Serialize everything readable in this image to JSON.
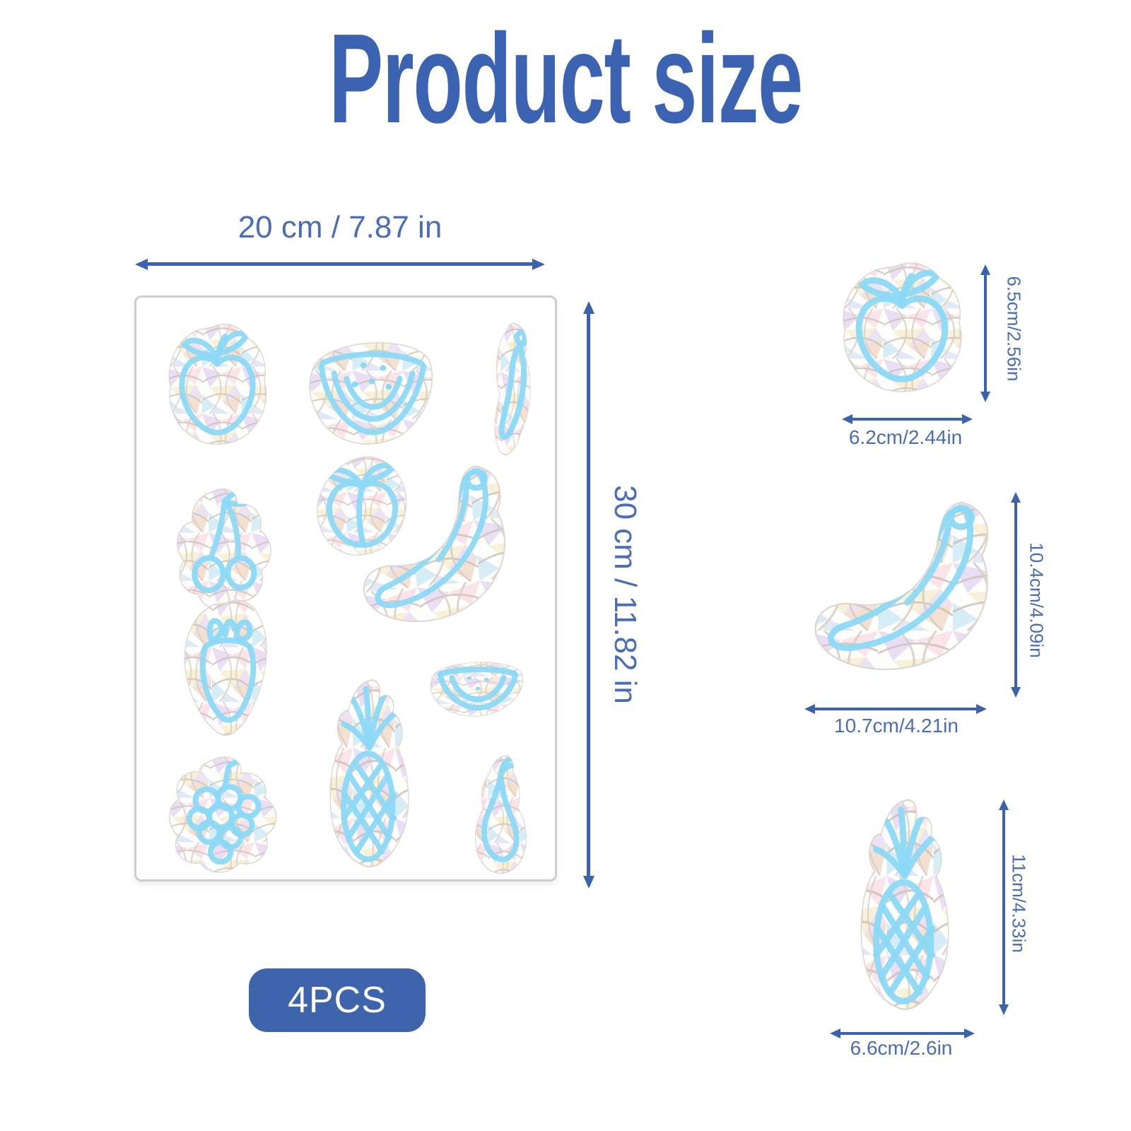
{
  "title": "Product size",
  "colors": {
    "accent": "#3a62ad",
    "dimension_text": "#4a6db6",
    "title_text": "#3c63b2",
    "badge_bg": "#3e64ab",
    "badge_text": "#ffffff",
    "decal_line": "#8cd9f5",
    "sheet_border": "#cdcdcd"
  },
  "sheet": {
    "width_label": "20 cm / 7.87 in",
    "height_label": "30 cm / 11.82 in",
    "badge_label": "4PCS",
    "decals": [
      "apple",
      "watermelon",
      "chili",
      "cherry",
      "peach",
      "banana",
      "strawberry",
      "watermelon-small",
      "grapes",
      "pineapple",
      "pear"
    ]
  },
  "items": [
    {
      "name": "apple-decal",
      "height_label": "6.5cm/2.56in",
      "width_label": "6.2cm/2.44in"
    },
    {
      "name": "banana-decal",
      "height_label": "10.4cm/4.09in",
      "width_label": "10.7cm/4.21in"
    },
    {
      "name": "pineapple-decal",
      "height_label": "11cm/4.33in",
      "width_label": "6.6cm/2.6in"
    }
  ]
}
